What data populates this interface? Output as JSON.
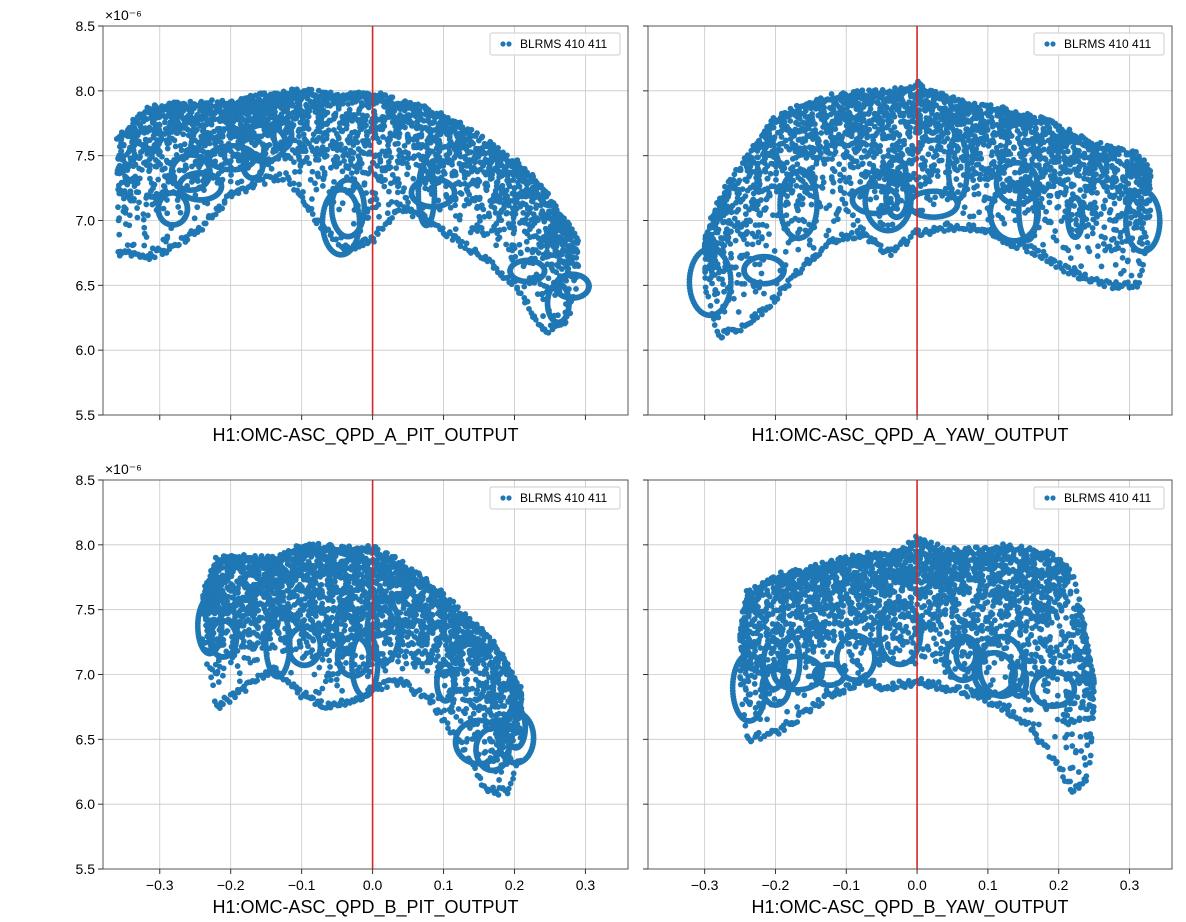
{
  "colors": {
    "series": "#1f77b4",
    "zero_line": "#d62728",
    "grid": "#c8c8c8",
    "frame": "#555555"
  },
  "y_exponent_label": "×10⁻⁶",
  "chart_data": [
    {
      "type": "scatter",
      "xlabel": "H1:OMC-ASC_QPD_A_PIT_OUTPUT",
      "ylabel": "",
      "xlim": [
        -0.38,
        0.36
      ],
      "ylim": [
        5.5,
        8.5
      ],
      "x_ticks": [
        -0.3,
        -0.2,
        -0.1,
        0.0,
        0.1,
        0.2,
        0.3
      ],
      "x_tick_labels_visible": false,
      "y_ticks": [
        5.5,
        6.0,
        6.5,
        7.0,
        7.5,
        8.0,
        8.5
      ],
      "y_tick_labels": [
        "5.5",
        "6.0",
        "6.5",
        "7.0",
        "7.5",
        "8.0",
        "8.5"
      ],
      "y_tick_labels_visible": true,
      "y_scale_exponent": -6,
      "grid": true,
      "legend": {
        "position": "top-right",
        "entries": [
          "BLRMS 410 411"
        ]
      },
      "vline_x": 0.0,
      "series": [
        {
          "name": "BLRMS 410 411",
          "envelope_x": [
            -0.36,
            -0.32,
            -0.28,
            -0.24,
            -0.2,
            -0.16,
            -0.12,
            -0.08,
            -0.04,
            0.0,
            0.04,
            0.08,
            0.12,
            0.16,
            0.2,
            0.24,
            0.27,
            0.29
          ],
          "envelope_top": [
            7.62,
            7.85,
            7.9,
            7.9,
            7.9,
            7.95,
            7.99,
            7.98,
            7.96,
            7.97,
            7.9,
            7.85,
            7.75,
            7.6,
            7.45,
            7.25,
            7.0,
            6.85
          ],
          "envelope_bottom": [
            6.75,
            6.72,
            6.8,
            6.95,
            7.2,
            7.3,
            7.35,
            7.0,
            6.78,
            6.85,
            7.1,
            7.0,
            6.85,
            6.7,
            6.5,
            6.15,
            6.2,
            6.5
          ]
        }
      ]
    },
    {
      "type": "scatter",
      "xlabel": "H1:OMC-ASC_QPD_A_YAW_OUTPUT",
      "ylabel": "",
      "xlim": [
        -0.38,
        0.36
      ],
      "ylim": [
        5.5,
        8.5
      ],
      "x_ticks": [
        -0.3,
        -0.2,
        -0.1,
        0.0,
        0.1,
        0.2,
        0.3
      ],
      "x_tick_labels_visible": false,
      "y_ticks": [
        5.5,
        6.0,
        6.5,
        7.0,
        7.5,
        8.0,
        8.5
      ],
      "y_tick_labels": [
        "5.5",
        "6.0",
        "6.5",
        "7.0",
        "7.5",
        "8.0",
        "8.5"
      ],
      "y_tick_labels_visible": false,
      "y_scale_exponent": -6,
      "grid": true,
      "legend": {
        "position": "top-right",
        "entries": [
          "BLRMS 410 411"
        ]
      },
      "vline_x": 0.0,
      "series": [
        {
          "name": "BLRMS 410 411",
          "envelope_x": [
            -0.3,
            -0.28,
            -0.24,
            -0.2,
            -0.16,
            -0.12,
            -0.08,
            -0.04,
            0.0,
            0.04,
            0.08,
            0.12,
            0.16,
            0.2,
            0.24,
            0.28,
            0.31,
            0.33
          ],
          "envelope_top": [
            6.85,
            7.15,
            7.5,
            7.78,
            7.9,
            7.95,
            7.98,
            7.98,
            8.05,
            7.95,
            7.88,
            7.85,
            7.8,
            7.72,
            7.6,
            7.55,
            7.5,
            7.38
          ],
          "envelope_bottom": [
            6.5,
            6.1,
            6.2,
            6.4,
            6.65,
            6.85,
            6.9,
            6.75,
            6.9,
            6.95,
            6.95,
            6.85,
            6.78,
            6.65,
            6.55,
            6.5,
            6.5,
            6.85
          ]
        }
      ]
    },
    {
      "type": "scatter",
      "xlabel": "H1:OMC-ASC_QPD_B_PIT_OUTPUT",
      "ylabel": "",
      "xlim": [
        -0.38,
        0.36
      ],
      "ylim": [
        5.5,
        8.5
      ],
      "x_ticks": [
        -0.3,
        -0.2,
        -0.1,
        0.0,
        0.1,
        0.2,
        0.3
      ],
      "x_tick_labels": [
        "−0.3",
        "−0.2",
        "−0.1",
        "0.0",
        "0.1",
        "0.2",
        "0.3"
      ],
      "x_tick_labels_visible": true,
      "y_ticks": [
        5.5,
        6.0,
        6.5,
        7.0,
        7.5,
        8.0,
        8.5
      ],
      "y_tick_labels": [
        "5.5",
        "6.0",
        "6.5",
        "7.0",
        "7.5",
        "8.0",
        "8.5"
      ],
      "y_tick_labels_visible": true,
      "y_scale_exponent": -6,
      "grid": true,
      "legend": {
        "position": "top-right",
        "entries": [
          "BLRMS 410 411"
        ]
      },
      "vline_x": 0.0,
      "series": [
        {
          "name": "BLRMS 410 411",
          "envelope_x": [
            -0.24,
            -0.22,
            -0.18,
            -0.14,
            -0.1,
            -0.06,
            -0.02,
            0.0,
            0.04,
            0.08,
            0.12,
            0.16,
            0.19,
            0.21
          ],
          "envelope_top": [
            7.6,
            7.88,
            7.9,
            7.88,
            7.98,
            7.98,
            7.95,
            7.97,
            7.85,
            7.7,
            7.5,
            7.3,
            7.1,
            6.85
          ],
          "envelope_bottom": [
            7.3,
            6.75,
            6.9,
            7.05,
            6.85,
            6.75,
            6.8,
            6.9,
            6.95,
            6.8,
            6.5,
            6.1,
            6.1,
            6.4
          ]
        }
      ]
    },
    {
      "type": "scatter",
      "xlabel": "H1:OMC-ASC_QPD_B_YAW_OUTPUT",
      "ylabel": "",
      "xlim": [
        -0.38,
        0.36
      ],
      "ylim": [
        5.5,
        8.5
      ],
      "x_ticks": [
        -0.3,
        -0.2,
        -0.1,
        0.0,
        0.1,
        0.2,
        0.3
      ],
      "x_tick_labels": [
        "−0.3",
        "−0.2",
        "−0.1",
        "0.0",
        "0.1",
        "0.2",
        "0.3"
      ],
      "x_tick_labels_visible": true,
      "y_ticks": [
        5.5,
        6.0,
        6.5,
        7.0,
        7.5,
        8.0,
        8.5
      ],
      "y_tick_labels": [
        "5.5",
        "6.0",
        "6.5",
        "7.0",
        "7.5",
        "8.0",
        "8.5"
      ],
      "y_tick_labels_visible": false,
      "y_scale_exponent": -6,
      "grid": true,
      "legend": {
        "position": "top-right",
        "entries": [
          "BLRMS 410 411"
        ]
      },
      "vline_x": 0.0,
      "series": [
        {
          "name": "BLRMS 410 411",
          "envelope_x": [
            -0.25,
            -0.24,
            -0.2,
            -0.16,
            -0.12,
            -0.08,
            -0.04,
            0.0,
            0.04,
            0.08,
            0.12,
            0.16,
            0.2,
            0.22,
            0.24,
            0.25
          ],
          "envelope_top": [
            7.35,
            7.62,
            7.75,
            7.8,
            7.85,
            7.92,
            7.9,
            8.05,
            7.95,
            7.95,
            7.98,
            7.95,
            7.9,
            7.75,
            7.3,
            6.95
          ],
          "envelope_bottom": [
            6.9,
            6.5,
            6.55,
            6.7,
            6.85,
            6.95,
            6.9,
            6.95,
            6.9,
            6.85,
            6.75,
            6.6,
            6.3,
            6.1,
            6.2,
            6.6
          ]
        }
      ]
    }
  ]
}
